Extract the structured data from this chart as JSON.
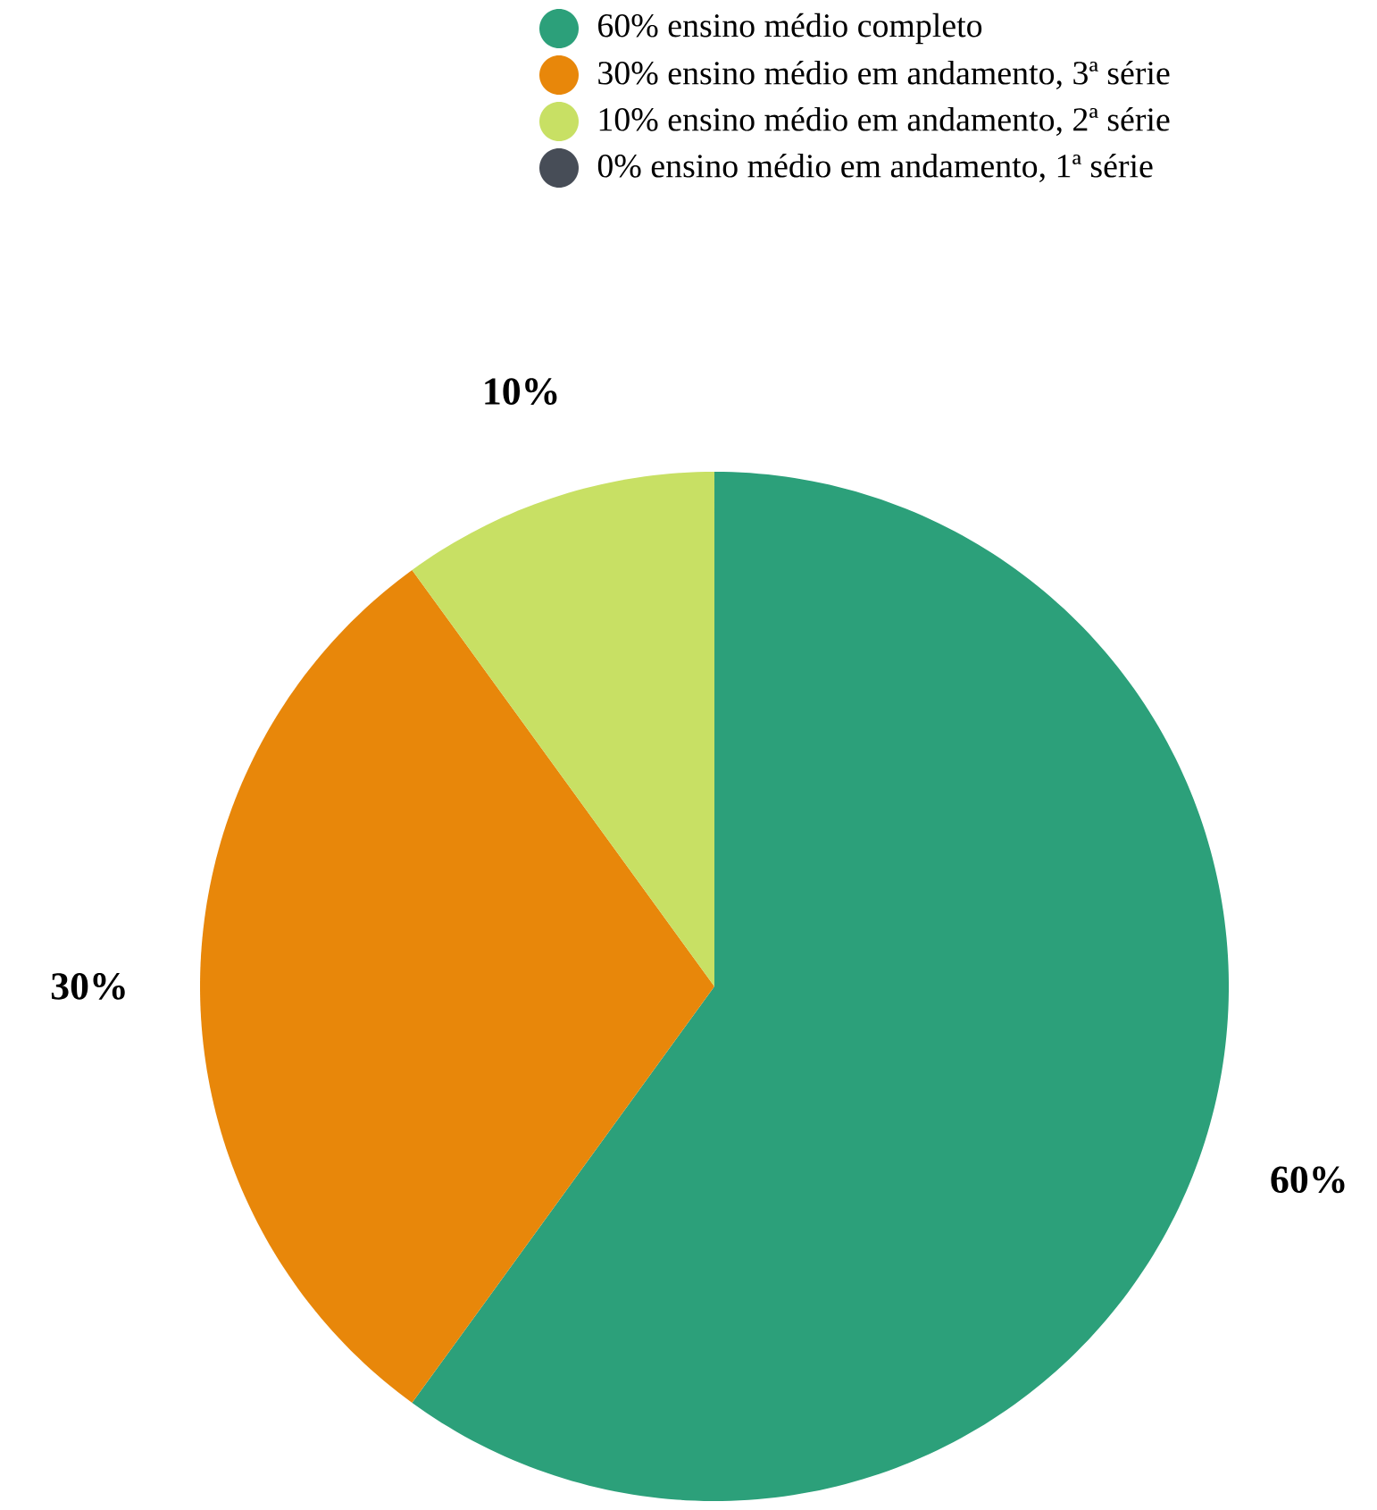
{
  "chart_data": {
    "type": "pie",
    "categories": [
      "60% ensino médio completo",
      "30% ensino médio em andamento, 3ª série",
      "10% ensino médio em andamento, 2ª série",
      "0% ensino médio em andamento, 1ª série"
    ],
    "values": [
      60,
      30,
      10,
      0
    ],
    "colors": [
      "#2ca07a",
      "#e8870a",
      "#c8e064",
      "#474d57"
    ],
    "value_labels": [
      "60%",
      "30%",
      "10%",
      null
    ],
    "legend": "top right"
  }
}
